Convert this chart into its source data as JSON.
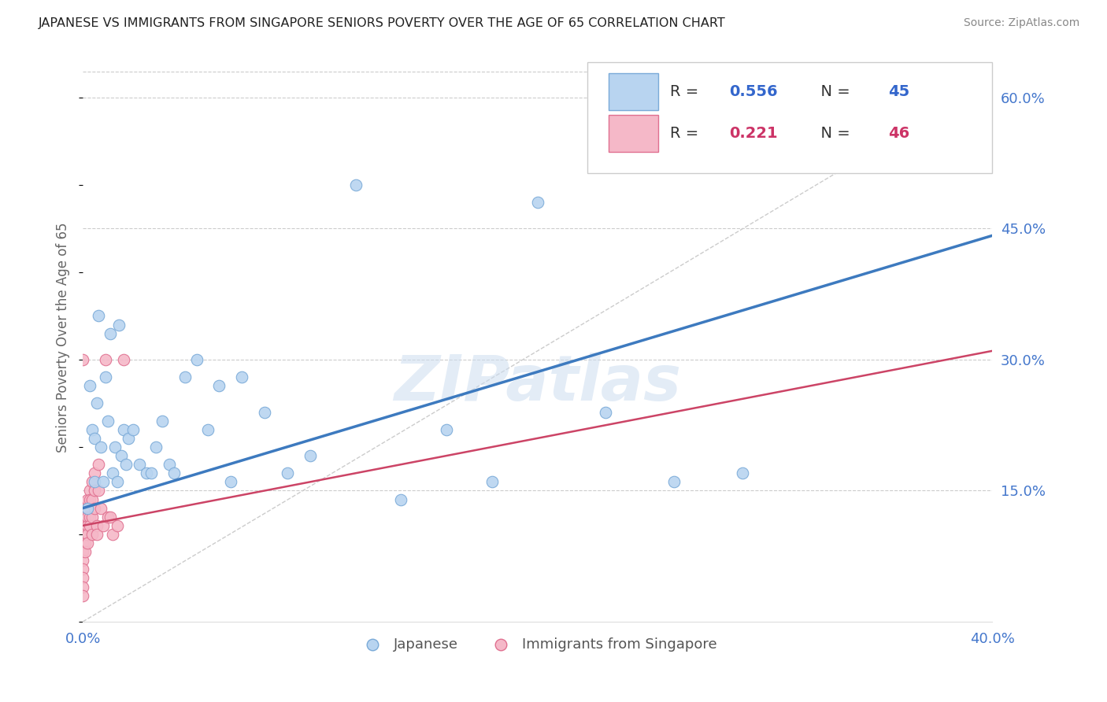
{
  "title": "JAPANESE VS IMMIGRANTS FROM SINGAPORE SENIORS POVERTY OVER THE AGE OF 65 CORRELATION CHART",
  "source": "Source: ZipAtlas.com",
  "ylabel": "Seniors Poverty Over the Age of 65",
  "xlim": [
    0.0,
    0.4
  ],
  "ylim": [
    0.0,
    0.65
  ],
  "xticks": [
    0.0,
    0.05,
    0.1,
    0.15,
    0.2,
    0.25,
    0.3,
    0.35,
    0.4
  ],
  "xtick_labels": [
    "0.0%",
    "",
    "",
    "",
    "",
    "",
    "",
    "",
    "40.0%"
  ],
  "yticks_right": [
    0.15,
    0.3,
    0.45,
    0.6
  ],
  "ytick_labels_right": [
    "15.0%",
    "30.0%",
    "45.0%",
    "60.0%"
  ],
  "grid_color": "#cccccc",
  "background_color": "#ffffff",
  "watermark": "ZIPatlas",
  "blue_trend_intercept": 0.13,
  "blue_trend_slope": 0.78,
  "pink_trend_intercept": 0.11,
  "pink_trend_slope": 0.5,
  "ref_line_slope": 1.55,
  "ref_line_intercept": 0.0,
  "series": [
    {
      "name": "Japanese",
      "R": 0.556,
      "N": 45,
      "color": "#b8d4f0",
      "edge_color": "#7aaad8",
      "trend_color": "#3d7abf",
      "trend_lw": 2.5,
      "x": [
        0.002,
        0.003,
        0.004,
        0.005,
        0.005,
        0.006,
        0.007,
        0.008,
        0.009,
        0.01,
        0.011,
        0.012,
        0.013,
        0.014,
        0.015,
        0.016,
        0.017,
        0.018,
        0.019,
        0.02,
        0.022,
        0.025,
        0.028,
        0.03,
        0.032,
        0.035,
        0.038,
        0.04,
        0.045,
        0.05,
        0.055,
        0.06,
        0.065,
        0.07,
        0.08,
        0.09,
        0.1,
        0.12,
        0.14,
        0.16,
        0.18,
        0.2,
        0.23,
        0.26,
        0.29
      ],
      "y": [
        0.13,
        0.27,
        0.22,
        0.16,
        0.21,
        0.25,
        0.35,
        0.2,
        0.16,
        0.28,
        0.23,
        0.33,
        0.17,
        0.2,
        0.16,
        0.34,
        0.19,
        0.22,
        0.18,
        0.21,
        0.22,
        0.18,
        0.17,
        0.17,
        0.2,
        0.23,
        0.18,
        0.17,
        0.28,
        0.3,
        0.22,
        0.27,
        0.16,
        0.28,
        0.24,
        0.17,
        0.19,
        0.5,
        0.14,
        0.22,
        0.16,
        0.48,
        0.24,
        0.16,
        0.17
      ]
    },
    {
      "name": "Immigrants from Singapore",
      "R": 0.221,
      "N": 46,
      "color": "#f5b8c8",
      "edge_color": "#e07090",
      "trend_color": "#cc4466",
      "trend_lw": 1.8,
      "x": [
        0.0,
        0.0,
        0.0,
        0.0,
        0.0,
        0.0,
        0.0,
        0.0,
        0.0,
        0.0,
        0.0,
        0.001,
        0.001,
        0.001,
        0.001,
        0.001,
        0.001,
        0.002,
        0.002,
        0.002,
        0.002,
        0.002,
        0.002,
        0.003,
        0.003,
        0.003,
        0.003,
        0.004,
        0.004,
        0.004,
        0.004,
        0.005,
        0.005,
        0.005,
        0.006,
        0.006,
        0.007,
        0.007,
        0.008,
        0.009,
        0.01,
        0.011,
        0.012,
        0.013,
        0.015,
        0.018
      ],
      "y": [
        0.12,
        0.11,
        0.1,
        0.09,
        0.08,
        0.07,
        0.06,
        0.05,
        0.04,
        0.03,
        0.3,
        0.13,
        0.12,
        0.11,
        0.1,
        0.09,
        0.08,
        0.14,
        0.13,
        0.12,
        0.11,
        0.1,
        0.09,
        0.15,
        0.14,
        0.12,
        0.11,
        0.16,
        0.14,
        0.12,
        0.1,
        0.17,
        0.15,
        0.13,
        0.11,
        0.1,
        0.18,
        0.15,
        0.13,
        0.11,
        0.3,
        0.12,
        0.12,
        0.1,
        0.11,
        0.3
      ]
    }
  ]
}
